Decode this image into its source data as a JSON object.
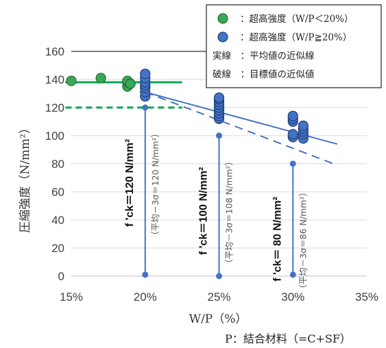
{
  "chart_data": {
    "type": "scatter",
    "xlabel": "W/P（%）",
    "ylabel": "圧縮強度（N/mm²）",
    "note": "P：結合材料（=C+SF）",
    "xlim": [
      15,
      35
    ],
    "ylim": [
      0,
      160
    ],
    "xticks": [
      "15%",
      "20%",
      "25%",
      "30%",
      "35%"
    ],
    "yticks": [
      "0",
      "20",
      "40",
      "60",
      "80",
      "100",
      "120",
      "140",
      "160"
    ],
    "legend_position": "top-right",
    "legend": [
      {
        "marker": "green-circle",
        "label": "：超高強度（W/P＜20%）"
      },
      {
        "marker": "blue-circle",
        "label": "：超高強度（W/P≧20%）"
      },
      {
        "marker": "solid-line",
        "label": "実線　：平均値の近似線"
      },
      {
        "marker": "dashed-line",
        "label": "破線　：目標値の近似値"
      }
    ],
    "series": [
      {
        "marker": "green",
        "color": "#2e9e3e",
        "points": [
          [
            15,
            139
          ],
          [
            17,
            141
          ],
          [
            18.8,
            135
          ],
          [
            18.8,
            138
          ],
          [
            18.8,
            139
          ],
          [
            19,
            137
          ]
        ]
      },
      {
        "marker": "blue",
        "color": "#4472c4",
        "points": [
          [
            20,
            128
          ],
          [
            20,
            131
          ],
          [
            20,
            134
          ],
          [
            20,
            136
          ],
          [
            20,
            138
          ],
          [
            20,
            141
          ],
          [
            20,
            144
          ],
          [
            25,
            112
          ],
          [
            25,
            114
          ],
          [
            25,
            116
          ],
          [
            25,
            118
          ],
          [
            25,
            120
          ],
          [
            25,
            122
          ],
          [
            25,
            124
          ],
          [
            25,
            126
          ],
          [
            25,
            127
          ],
          [
            30,
            99
          ],
          [
            30,
            101
          ],
          [
            30,
            110
          ],
          [
            30,
            112
          ],
          [
            30,
            114
          ],
          [
            30.7,
            98
          ],
          [
            30.7,
            101
          ],
          [
            30.7,
            103
          ],
          [
            30.7,
            105
          ],
          [
            30.7,
            107
          ]
        ]
      }
    ],
    "lines": [
      {
        "style": "solid",
        "color": "#00a650",
        "points": [
          [
            14.6,
            138
          ],
          [
            22.5,
            138
          ]
        ]
      },
      {
        "style": "dashed",
        "color": "#00a650",
        "points": [
          [
            14.6,
            120
          ],
          [
            22.5,
            120
          ]
        ]
      },
      {
        "style": "solid",
        "color": "#4472c4",
        "points": [
          [
            20,
            131
          ],
          [
            33,
            94
          ]
        ]
      },
      {
        "style": "dashed",
        "color": "#4472c4",
        "points": [
          [
            20,
            131
          ],
          [
            33,
            79
          ]
        ]
      }
    ],
    "markers_series": [
      {
        "x": 20,
        "top": 120,
        "bottom": 1,
        "fck_label": "f 'ck＝120 N/mm²",
        "calc_label": "（平均－3σ＝120 N/mm²）"
      },
      {
        "x": 25,
        "top": 100,
        "bottom": 0,
        "fck_label": "f 'ck＝100 N/mm²",
        "calc_label": "（平均－3σ＝108 N/mm²）"
      },
      {
        "x": 30,
        "top": 80,
        "bottom": 1,
        "fck_label": "f 'ck＝ 80 N/mm²",
        "calc_label": "（平均－3σ＝86 N/mm²）"
      }
    ]
  }
}
